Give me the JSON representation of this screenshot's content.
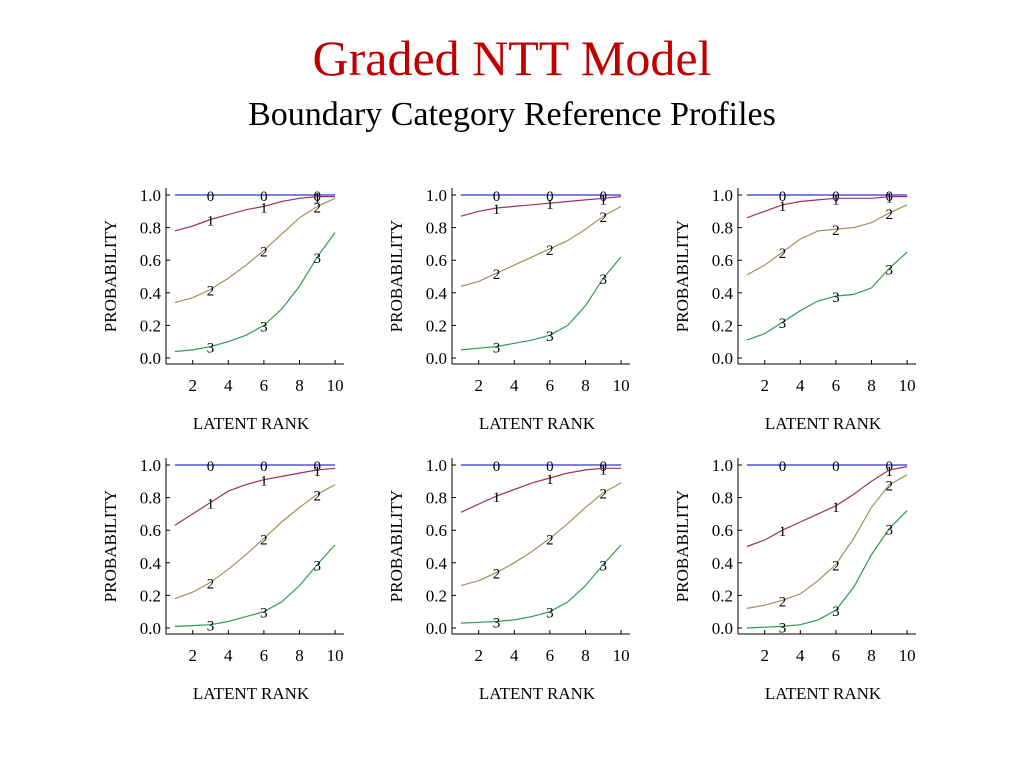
{
  "slide": {
    "title": "Graded NTT Model",
    "subtitle": "Boundary Category Reference Profiles",
    "title_color": "#c00000"
  },
  "series_colors": [
    "#3333cc",
    "#993366",
    "#a09060",
    "#339955"
  ],
  "chart_data": [
    {
      "type": "line",
      "xlabel": "LATENT RANK",
      "ylabel": "PROBABILITY",
      "xlim": [
        0.5,
        10.5
      ],
      "ylim": [
        0,
        1
      ],
      "xticks": [
        "2",
        "4",
        "6",
        "8",
        "10"
      ],
      "yticks": [
        "0.0",
        "0.2",
        "0.4",
        "0.6",
        "0.8",
        "1.0"
      ],
      "x": [
        1,
        2,
        3,
        4,
        5,
        6,
        7,
        8,
        9,
        10
      ],
      "series": [
        {
          "label": "0",
          "values": [
            1.0,
            1.0,
            1.0,
            1.0,
            1.0,
            1.0,
            1.0,
            1.0,
            1.0,
            1.0
          ]
        },
        {
          "label": "1",
          "values": [
            0.78,
            0.81,
            0.85,
            0.88,
            0.91,
            0.93,
            0.96,
            0.98,
            0.99,
            0.99
          ]
        },
        {
          "label": "2",
          "values": [
            0.34,
            0.37,
            0.42,
            0.49,
            0.57,
            0.66,
            0.76,
            0.86,
            0.93,
            0.98
          ]
        },
        {
          "label": "3",
          "values": [
            0.04,
            0.05,
            0.07,
            0.1,
            0.14,
            0.2,
            0.3,
            0.44,
            0.62,
            0.77
          ]
        }
      ]
    },
    {
      "type": "line",
      "xlabel": "LATENT RANK",
      "ylabel": "PROBABILITY",
      "xlim": [
        0.5,
        10.5
      ],
      "ylim": [
        0,
        1
      ],
      "xticks": [
        "2",
        "4",
        "6",
        "8",
        "10"
      ],
      "yticks": [
        "0.0",
        "0.2",
        "0.4",
        "0.6",
        "0.8",
        "1.0"
      ],
      "x": [
        1,
        2,
        3,
        4,
        5,
        6,
        7,
        8,
        9,
        10
      ],
      "series": [
        {
          "label": "0",
          "values": [
            1.0,
            1.0,
            1.0,
            1.0,
            1.0,
            1.0,
            1.0,
            1.0,
            1.0,
            1.0
          ]
        },
        {
          "label": "1",
          "values": [
            0.87,
            0.9,
            0.92,
            0.93,
            0.94,
            0.95,
            0.96,
            0.97,
            0.98,
            0.99
          ]
        },
        {
          "label": "2",
          "values": [
            0.44,
            0.47,
            0.52,
            0.57,
            0.62,
            0.67,
            0.72,
            0.79,
            0.87,
            0.93
          ]
        },
        {
          "label": "3",
          "values": [
            0.05,
            0.06,
            0.07,
            0.09,
            0.11,
            0.14,
            0.2,
            0.32,
            0.49,
            0.62
          ]
        }
      ]
    },
    {
      "type": "line",
      "xlabel": "LATENT RANK",
      "ylabel": "PROBABILITY",
      "xlim": [
        0.5,
        10.5
      ],
      "ylim": [
        0,
        1
      ],
      "xticks": [
        "2",
        "4",
        "6",
        "8",
        "10"
      ],
      "yticks": [
        "0.0",
        "0.2",
        "0.4",
        "0.6",
        "0.8",
        "1.0"
      ],
      "x": [
        1,
        2,
        3,
        4,
        5,
        6,
        7,
        8,
        9,
        10
      ],
      "series": [
        {
          "label": "0",
          "values": [
            1.0,
            1.0,
            1.0,
            1.0,
            1.0,
            1.0,
            1.0,
            1.0,
            1.0,
            1.0
          ]
        },
        {
          "label": "1",
          "values": [
            0.86,
            0.9,
            0.94,
            0.96,
            0.97,
            0.98,
            0.98,
            0.98,
            0.99,
            0.99
          ]
        },
        {
          "label": "2",
          "values": [
            0.51,
            0.57,
            0.65,
            0.73,
            0.78,
            0.79,
            0.8,
            0.83,
            0.89,
            0.94
          ]
        },
        {
          "label": "3",
          "values": [
            0.11,
            0.15,
            0.22,
            0.29,
            0.35,
            0.38,
            0.39,
            0.43,
            0.55,
            0.65
          ]
        }
      ]
    },
    {
      "type": "line",
      "xlabel": "LATENT RANK",
      "ylabel": "PROBABILITY",
      "xlim": [
        0.5,
        10.5
      ],
      "ylim": [
        0,
        1
      ],
      "xticks": [
        "2",
        "4",
        "6",
        "8",
        "10"
      ],
      "yticks": [
        "0.0",
        "0.2",
        "0.4",
        "0.6",
        "0.8",
        "1.0"
      ],
      "x": [
        1,
        2,
        3,
        4,
        5,
        6,
        7,
        8,
        9,
        10
      ],
      "series": [
        {
          "label": "0",
          "values": [
            1.0,
            1.0,
            1.0,
            1.0,
            1.0,
            1.0,
            1.0,
            1.0,
            1.0,
            1.0
          ]
        },
        {
          "label": "1",
          "values": [
            0.63,
            0.7,
            0.77,
            0.84,
            0.88,
            0.91,
            0.93,
            0.95,
            0.97,
            0.98
          ]
        },
        {
          "label": "2",
          "values": [
            0.18,
            0.22,
            0.28,
            0.36,
            0.45,
            0.55,
            0.65,
            0.74,
            0.82,
            0.88
          ]
        },
        {
          "label": "3",
          "values": [
            0.01,
            0.015,
            0.02,
            0.04,
            0.07,
            0.1,
            0.16,
            0.26,
            0.39,
            0.51
          ]
        }
      ]
    },
    {
      "type": "line",
      "xlabel": "LATENT RANK",
      "ylabel": "PROBABILITY",
      "xlim": [
        0.5,
        10.5
      ],
      "ylim": [
        0,
        1
      ],
      "xticks": [
        "2",
        "4",
        "6",
        "8",
        "10"
      ],
      "yticks": [
        "0.0",
        "0.2",
        "0.4",
        "0.6",
        "0.8",
        "1.0"
      ],
      "x": [
        1,
        2,
        3,
        4,
        5,
        6,
        7,
        8,
        9,
        10
      ],
      "series": [
        {
          "label": "0",
          "values": [
            1.0,
            1.0,
            1.0,
            1.0,
            1.0,
            1.0,
            1.0,
            1.0,
            1.0,
            1.0
          ]
        },
        {
          "label": "1",
          "values": [
            0.71,
            0.76,
            0.81,
            0.85,
            0.89,
            0.92,
            0.95,
            0.97,
            0.98,
            0.98
          ]
        },
        {
          "label": "2",
          "values": [
            0.26,
            0.29,
            0.34,
            0.4,
            0.47,
            0.55,
            0.64,
            0.74,
            0.83,
            0.89
          ]
        },
        {
          "label": "3",
          "values": [
            0.03,
            0.035,
            0.04,
            0.05,
            0.07,
            0.1,
            0.16,
            0.26,
            0.39,
            0.51
          ]
        }
      ]
    },
    {
      "type": "line",
      "xlabel": "LATENT RANK",
      "ylabel": "PROBABILITY",
      "xlim": [
        0.5,
        10.5
      ],
      "ylim": [
        0,
        1
      ],
      "xticks": [
        "2",
        "4",
        "6",
        "8",
        "10"
      ],
      "yticks": [
        "0.0",
        "0.2",
        "0.4",
        "0.6",
        "0.8",
        "1.0"
      ],
      "x": [
        1,
        2,
        3,
        4,
        5,
        6,
        7,
        8,
        9,
        10
      ],
      "series": [
        {
          "label": "0",
          "values": [
            1.0,
            1.0,
            1.0,
            1.0,
            1.0,
            1.0,
            1.0,
            1.0,
            1.0,
            1.0
          ]
        },
        {
          "label": "1",
          "values": [
            0.5,
            0.54,
            0.6,
            0.65,
            0.7,
            0.75,
            0.82,
            0.9,
            0.97,
            0.99
          ]
        },
        {
          "label": "2",
          "values": [
            0.12,
            0.14,
            0.17,
            0.21,
            0.29,
            0.39,
            0.55,
            0.74,
            0.88,
            0.94
          ]
        },
        {
          "label": "3",
          "values": [
            0.0,
            0.005,
            0.01,
            0.02,
            0.05,
            0.11,
            0.25,
            0.45,
            0.61,
            0.72
          ]
        }
      ]
    }
  ]
}
